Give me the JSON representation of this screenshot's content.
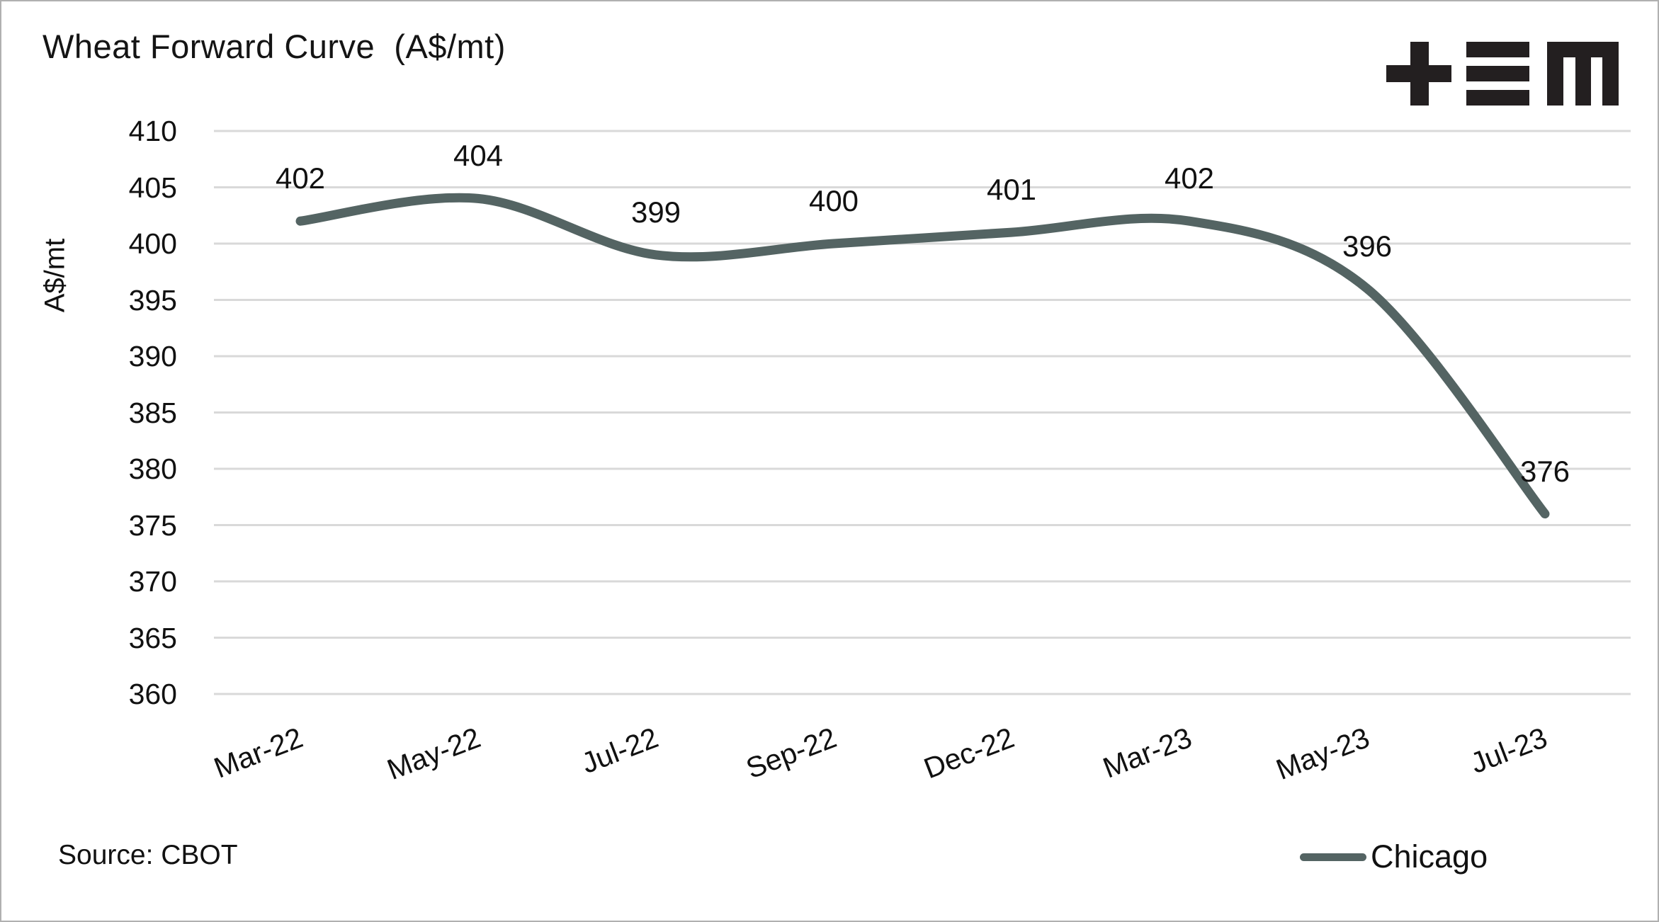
{
  "title": "Wheat Forward Curve  (A$/mt)",
  "source_note": "Source: CBOT",
  "logo": {
    "alt": "+≡M",
    "color": "#231f20"
  },
  "legend": {
    "position": "bottom-right",
    "entries": [
      {
        "label": "Chicago",
        "swatch_color": "#546463"
      }
    ]
  },
  "colors": {
    "line": "#546463",
    "gridline": "#d9d9d9",
    "text": "#111111",
    "page_border": "#b0b0b0",
    "background": "#ffffff"
  },
  "chart_data": {
    "type": "line",
    "categories": [
      "Mar-22",
      "May-22",
      "Jul-22",
      "Sep-22",
      "Dec-22",
      "Mar-23",
      "May-23",
      "Jul-23"
    ],
    "series": [
      {
        "name": "Chicago",
        "values": [
          402,
          404,
          399,
          400,
          401,
          402,
          396,
          376
        ],
        "color": "#546463"
      }
    ],
    "title": "Wheat Forward Curve  (A$/mt)",
    "xlabel": "",
    "ylabel": "A$/mt",
    "ylim": [
      360,
      410
    ],
    "yticks": [
      360,
      365,
      370,
      375,
      380,
      385,
      390,
      395,
      400,
      405,
      410
    ],
    "grid": true,
    "data_labels": true,
    "line_smoothing": true,
    "legend_position": "bottom-right"
  }
}
